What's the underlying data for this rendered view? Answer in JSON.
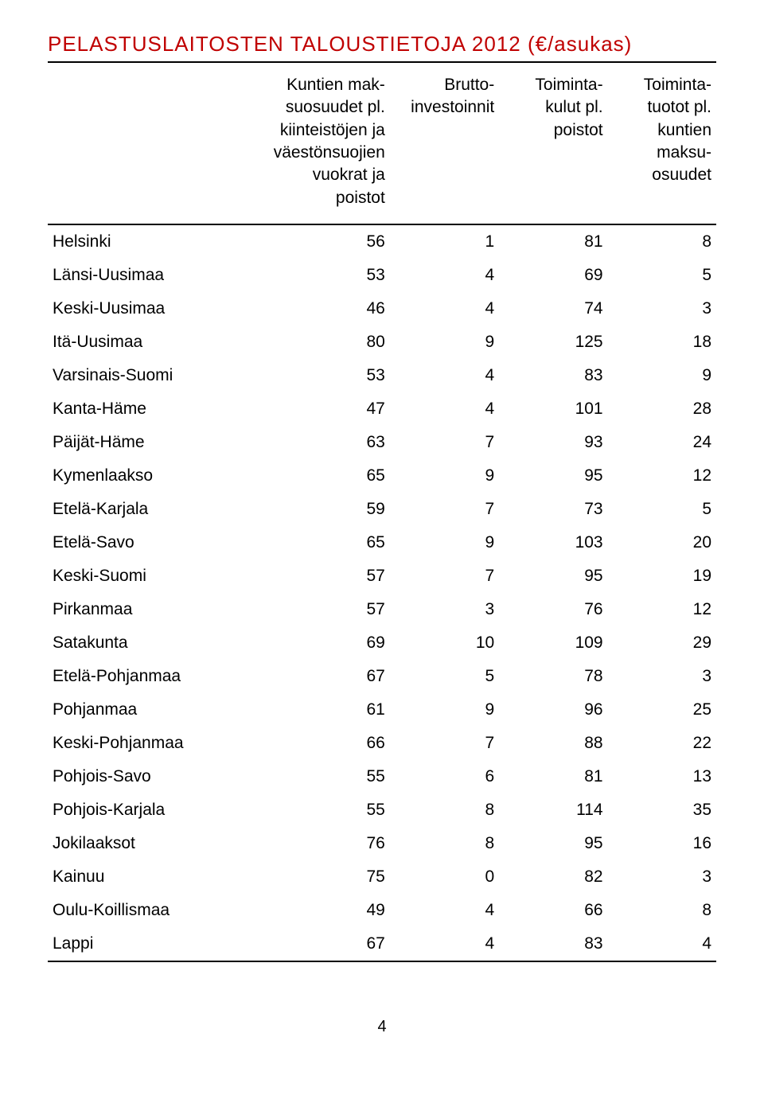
{
  "title": "PELASTUSLAITOSTEN TALOUSTIETOJA 2012 (€/asukas)",
  "colors": {
    "title": "#c00000",
    "rule": "#000000",
    "text": "#000000",
    "background": "#ffffff"
  },
  "table": {
    "columns": [
      "",
      "Kuntien mak-\nsuosuudet pl.\nkiinteistöjen ja\nväestönsuojien\nvuokrat ja poistot",
      "Brutto-\ninvestoinnit",
      "Toiminta-\nkulut pl.\npoistot",
      "Toiminta-\ntuotot pl.\nkuntien\nmaksu-\nosuudet"
    ],
    "rows": [
      {
        "region": "Helsinki",
        "v1": "56",
        "v2": "1",
        "v3": "81",
        "v4": "8"
      },
      {
        "region": "Länsi-Uusimaa",
        "v1": "53",
        "v2": "4",
        "v3": "69",
        "v4": "5"
      },
      {
        "region": "Keski-Uusimaa",
        "v1": "46",
        "v2": "4",
        "v3": "74",
        "v4": "3"
      },
      {
        "region": "Itä-Uusimaa",
        "v1": "80",
        "v2": "9",
        "v3": "125",
        "v4": "18"
      },
      {
        "region": "Varsinais-Suomi",
        "v1": "53",
        "v2": "4",
        "v3": "83",
        "v4": "9"
      },
      {
        "region": "Kanta-Häme",
        "v1": "47",
        "v2": "4",
        "v3": "101",
        "v4": "28"
      },
      {
        "region": "Päijät-Häme",
        "v1": "63",
        "v2": "7",
        "v3": "93",
        "v4": "24"
      },
      {
        "region": "Kymenlaakso",
        "v1": "65",
        "v2": "9",
        "v3": "95",
        "v4": "12"
      },
      {
        "region": "Etelä-Karjala",
        "v1": "59",
        "v2": "7",
        "v3": "73",
        "v4": "5"
      },
      {
        "region": "Etelä-Savo",
        "v1": "65",
        "v2": "9",
        "v3": "103",
        "v4": "20"
      },
      {
        "region": "Keski-Suomi",
        "v1": "57",
        "v2": "7",
        "v3": "95",
        "v4": "19"
      },
      {
        "region": "Pirkanmaa",
        "v1": "57",
        "v2": "3",
        "v3": "76",
        "v4": "12"
      },
      {
        "region": "Satakunta",
        "v1": "69",
        "v2": "10",
        "v3": "109",
        "v4": "29"
      },
      {
        "region": "Etelä-Pohjanmaa",
        "v1": "67",
        "v2": "5",
        "v3": "78",
        "v4": "3"
      },
      {
        "region": "Pohjanmaa",
        "v1": "61",
        "v2": "9",
        "v3": "96",
        "v4": "25"
      },
      {
        "region": "Keski-Pohjanmaa",
        "v1": "66",
        "v2": "7",
        "v3": "88",
        "v4": "22"
      },
      {
        "region": "Pohjois-Savo",
        "v1": "55",
        "v2": "6",
        "v3": "81",
        "v4": "13"
      },
      {
        "region": "Pohjois-Karjala",
        "v1": "55",
        "v2": "8",
        "v3": "114",
        "v4": "35"
      },
      {
        "region": "Jokilaaksot",
        "v1": "76",
        "v2": "8",
        "v3": "95",
        "v4": "16"
      },
      {
        "region": "Kainuu",
        "v1": "75",
        "v2": "0",
        "v3": "82",
        "v4": "3"
      },
      {
        "region": "Oulu-Koillismaa",
        "v1": "49",
        "v2": "4",
        "v3": "66",
        "v4": "8"
      },
      {
        "region": "Lappi",
        "v1": "67",
        "v2": "4",
        "v3": "83",
        "v4": "4"
      }
    ]
  },
  "pageNumber": "4"
}
